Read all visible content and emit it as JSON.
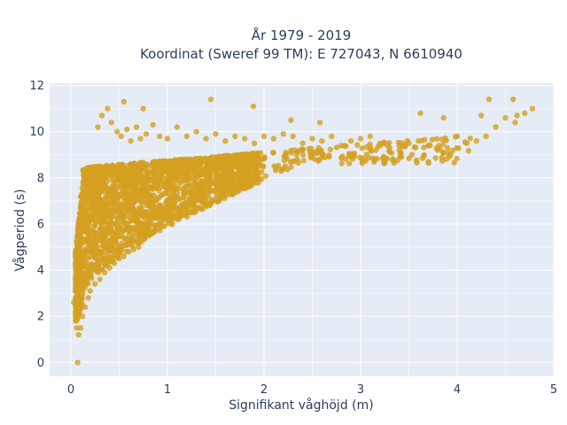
{
  "chart_data": {
    "type": "scatter",
    "title_line1": "År 1979 - 2019",
    "title_line2": "Koordinat (Sweref 99 TM): E 727043, N 6610940",
    "xlabel": "Signifikant våghöjd (m)",
    "ylabel": "Vågperiod (s)",
    "xlim": [
      -0.22,
      5.0
    ],
    "ylim": [
      -0.6,
      12.1
    ],
    "xticks": [
      "0",
      "1",
      "2",
      "3",
      "4",
      "5"
    ],
    "yticks": [
      "0",
      "2",
      "4",
      "6",
      "8",
      "10",
      "12"
    ],
    "grid": true,
    "legend": "none",
    "series": [
      {
        "marker_color": "#d4a020",
        "marker_opacity": 0.8,
        "x": [
          0.07,
          0.03,
          0.05,
          0.06,
          0.08,
          0.1,
          0.12,
          0.15,
          0.18,
          0.2,
          0.25,
          0.3,
          0.35,
          0.4,
          0.45,
          0.5,
          0.55,
          0.6,
          0.65,
          0.7,
          0.28,
          0.32,
          0.38,
          0.42,
          0.48,
          0.52,
          0.58,
          0.62,
          0.68,
          0.72,
          0.78,
          0.85,
          0.92,
          1.0,
          1.1,
          1.2,
          1.3,
          1.4,
          1.5,
          1.6,
          1.7,
          1.8,
          1.9,
          2.0,
          2.1,
          2.2,
          2.3,
          2.4,
          2.5,
          2.6,
          2.7,
          2.8,
          2.9,
          3.0,
          3.1,
          3.2,
          3.3,
          3.4,
          3.5,
          3.6,
          3.7,
          3.8,
          3.9,
          4.0,
          4.1,
          4.2,
          4.3,
          4.4,
          4.5,
          4.6,
          4.7,
          4.78,
          4.58,
          4.33,
          4.62,
          4.25,
          3.86,
          3.62,
          0.55,
          0.75,
          1.45,
          1.89,
          2.28,
          2.58,
          0.35,
          0.45,
          0.92,
          1.25,
          0.15,
          0.22
        ],
        "y": [
          0.0,
          2.6,
          1.8,
          1.5,
          1.2,
          1.5,
          2.0,
          2.4,
          2.8,
          3.1,
          3.4,
          3.6,
          3.9,
          4.1,
          4.3,
          4.5,
          4.6,
          4.8,
          4.9,
          5.0,
          10.2,
          10.7,
          11.0,
          10.4,
          10.0,
          9.8,
          10.1,
          9.6,
          10.2,
          9.7,
          9.9,
          10.3,
          9.8,
          9.7,
          10.2,
          9.8,
          10.0,
          9.7,
          9.9,
          9.6,
          9.8,
          9.7,
          9.5,
          9.8,
          9.7,
          9.9,
          9.8,
          9.5,
          9.7,
          9.6,
          9.8,
          9.4,
          9.6,
          9.7,
          9.8,
          9.5,
          9.3,
          9.4,
          9.5,
          9.6,
          9.4,
          9.2,
          9.3,
          9.8,
          9.5,
          9.6,
          9.8,
          10.2,
          10.6,
          10.4,
          10.8,
          11.0,
          11.4,
          11.4,
          10.7,
          10.7,
          10.6,
          10.8,
          11.3,
          11.0,
          11.4,
          11.1,
          10.5,
          10.4,
          8.0,
          7.5,
          6.8,
          6.5,
          6.0,
          5.0
        ]
      }
    ]
  }
}
